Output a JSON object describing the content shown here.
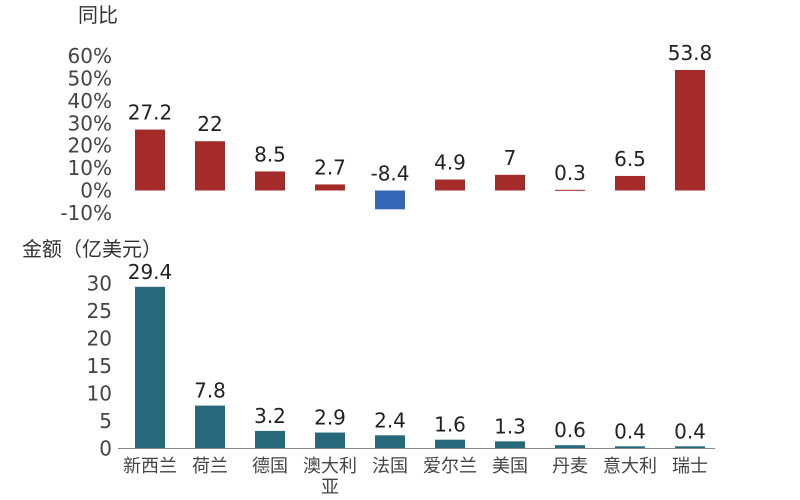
{
  "chart_data": [
    {
      "type": "bar",
      "title": "",
      "ylabel": "同比",
      "xlabel": "",
      "categories": [
        "新西兰",
        "荷兰",
        "德国",
        "澳大利亚",
        "法国",
        "爱尔兰",
        "美国",
        "丹麦",
        "意大利",
        "瑞士"
      ],
      "values": [
        27.2,
        22,
        8.5,
        2.7,
        -8.4,
        4.9,
        7,
        0.3,
        6.5,
        53.8
      ],
      "data_labels": [
        "27.2",
        "22",
        "8.5",
        "2.7",
        "-8.4",
        "4.9",
        "7",
        "0.3",
        "6.5",
        "53.8"
      ],
      "unit": "%",
      "ylim": [
        -10,
        60
      ],
      "yticks": [
        "60%",
        "50%",
        "40%",
        "30%",
        "20%",
        "10%",
        "0%",
        "-10%"
      ],
      "ytick_values": [
        60,
        50,
        40,
        30,
        20,
        10,
        0,
        -10
      ],
      "grid": false,
      "colors": {
        "positive": "#a52a2a",
        "negative": "#3366b5"
      }
    },
    {
      "type": "bar",
      "title": "",
      "ylabel": "金额（亿美元）",
      "xlabel": "",
      "categories": [
        "新西兰",
        "荷兰",
        "德国",
        "澳大利亚",
        "法国",
        "爱尔兰",
        "美国",
        "丹麦",
        "意大利",
        "瑞士"
      ],
      "category_labels": [
        [
          "新西兰"
        ],
        [
          "荷兰"
        ],
        [
          "德国"
        ],
        [
          "澳大利",
          "亚"
        ],
        [
          "法国"
        ],
        [
          "爱尔兰"
        ],
        [
          "美国"
        ],
        [
          "丹麦"
        ],
        [
          "意大利"
        ],
        [
          "瑞士"
        ]
      ],
      "values": [
        29.4,
        7.8,
        3.2,
        2.9,
        2.4,
        1.6,
        1.3,
        0.6,
        0.4,
        0.4
      ],
      "data_labels": [
        "29.4",
        "7.8",
        "3.2",
        "2.9",
        "2.4",
        "1.6",
        "1.3",
        "0.6",
        "0.4",
        "0.4"
      ],
      "ylim": [
        0,
        30
      ],
      "yticks": [
        "30",
        "25",
        "20",
        "15",
        "10",
        "5",
        "0"
      ],
      "ytick_values": [
        30,
        25,
        20,
        15,
        10,
        5,
        0
      ],
      "grid": false,
      "colors": {
        "bar": "#27697a"
      }
    }
  ]
}
